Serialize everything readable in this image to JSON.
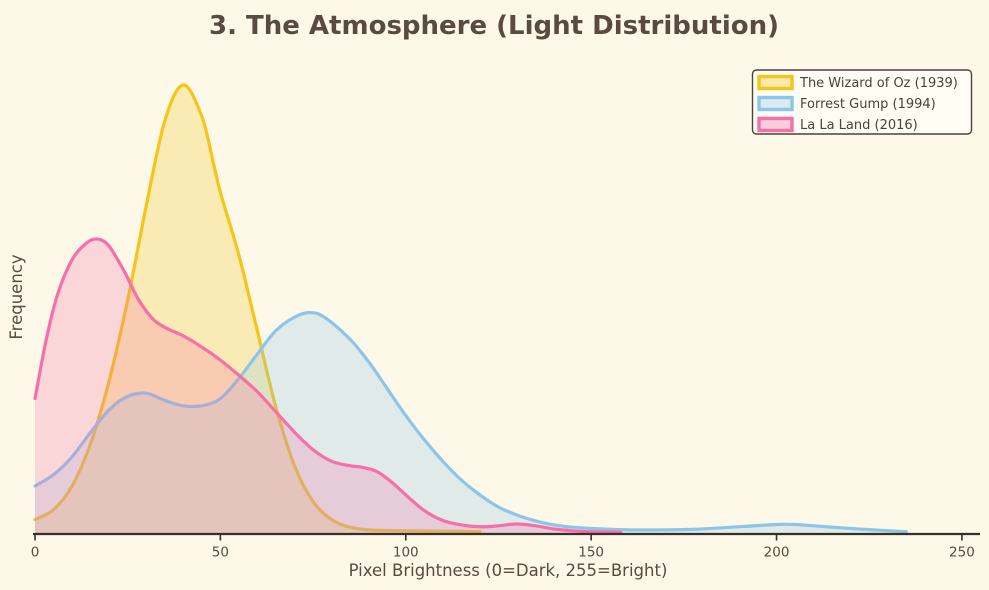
{
  "canvas": {
    "background": "#FDF8E8",
    "text_color": "#5A4A42",
    "axis_color": "#362E29",
    "legend_bg": "#FFFDF3",
    "legend_border": "#4A423C"
  },
  "chart_data": {
    "type": "area",
    "subtype": "kde-density",
    "title": "3. The Atmosphere (Light Distribution)",
    "xlabel": "Pixel Brightness (0=Dark, 255=Bright)",
    "ylabel": "Frequency",
    "xlim": [
      0,
      253
    ],
    "ylim": [
      0,
      1.05
    ],
    "xticks": [
      0,
      50,
      100,
      150,
      200,
      250
    ],
    "grid": false,
    "legend_position": "upper right",
    "series": [
      {
        "name": "The Wizard of Oz (1939)",
        "color": "#F5C518",
        "fill_alpha": 0.25,
        "peak_x": 40,
        "points": [
          [
            0,
            0.03
          ],
          [
            5,
            0.052
          ],
          [
            10,
            0.105
          ],
          [
            15,
            0.2
          ],
          [
            20,
            0.34
          ],
          [
            25,
            0.52
          ],
          [
            30,
            0.73
          ],
          [
            35,
            0.92
          ],
          [
            40,
            1.0
          ],
          [
            45,
            0.93
          ],
          [
            48,
            0.83
          ],
          [
            50,
            0.76
          ],
          [
            55,
            0.62
          ],
          [
            60,
            0.45
          ],
          [
            65,
            0.28
          ],
          [
            70,
            0.15
          ],
          [
            75,
            0.07
          ],
          [
            80,
            0.03
          ],
          [
            85,
            0.013
          ],
          [
            90,
            0.007
          ],
          [
            100,
            0.005
          ],
          [
            110,
            0.004
          ],
          [
            120,
            0.003
          ]
        ]
      },
      {
        "name": "Forrest Gump (1994)",
        "color": "#8CC5EA",
        "fill_alpha": 0.25,
        "peak_x": 74,
        "points": [
          [
            0,
            0.105
          ],
          [
            5,
            0.13
          ],
          [
            10,
            0.17
          ],
          [
            15,
            0.225
          ],
          [
            20,
            0.275
          ],
          [
            25,
            0.305
          ],
          [
            30,
            0.312
          ],
          [
            35,
            0.296
          ],
          [
            40,
            0.284
          ],
          [
            45,
            0.284
          ],
          [
            50,
            0.3
          ],
          [
            55,
            0.345
          ],
          [
            60,
            0.4
          ],
          [
            65,
            0.452
          ],
          [
            70,
            0.482
          ],
          [
            74,
            0.492
          ],
          [
            78,
            0.482
          ],
          [
            85,
            0.432
          ],
          [
            90,
            0.382
          ],
          [
            95,
            0.322
          ],
          [
            100,
            0.262
          ],
          [
            105,
            0.208
          ],
          [
            110,
            0.16
          ],
          [
            115,
            0.118
          ],
          [
            120,
            0.085
          ],
          [
            125,
            0.058
          ],
          [
            130,
            0.04
          ],
          [
            135,
            0.027
          ],
          [
            140,
            0.018
          ],
          [
            145,
            0.013
          ],
          [
            150,
            0.01
          ],
          [
            160,
            0.007
          ],
          [
            170,
            0.007
          ],
          [
            180,
            0.009
          ],
          [
            190,
            0.014
          ],
          [
            200,
            0.019
          ],
          [
            205,
            0.019
          ],
          [
            210,
            0.016
          ],
          [
            220,
            0.01
          ],
          [
            228,
            0.006
          ],
          [
            235,
            0.003
          ]
        ]
      },
      {
        "name": "La La Land (2016)",
        "color": "#F76FA8",
        "fill_alpha": 0.25,
        "peak_x": 17,
        "points": [
          [
            0,
            0.3
          ],
          [
            3,
            0.43
          ],
          [
            6,
            0.53
          ],
          [
            10,
            0.61
          ],
          [
            14,
            0.648
          ],
          [
            17,
            0.656
          ],
          [
            20,
            0.64
          ],
          [
            24,
            0.585
          ],
          [
            28,
            0.52
          ],
          [
            32,
            0.476
          ],
          [
            36,
            0.455
          ],
          [
            40,
            0.44
          ],
          [
            45,
            0.415
          ],
          [
            50,
            0.386
          ],
          [
            55,
            0.352
          ],
          [
            60,
            0.315
          ],
          [
            65,
            0.27
          ],
          [
            70,
            0.225
          ],
          [
            75,
            0.186
          ],
          [
            80,
            0.16
          ],
          [
            85,
            0.15
          ],
          [
            88,
            0.147
          ],
          [
            92,
            0.138
          ],
          [
            96,
            0.115
          ],
          [
            100,
            0.085
          ],
          [
            105,
            0.05
          ],
          [
            110,
            0.028
          ],
          [
            115,
            0.018
          ],
          [
            120,
            0.014
          ],
          [
            125,
            0.016
          ],
          [
            130,
            0.02
          ],
          [
            135,
            0.016
          ],
          [
            140,
            0.009
          ],
          [
            145,
            0.005
          ],
          [
            150,
            0.003
          ],
          [
            158,
            0.002
          ]
        ]
      }
    ]
  }
}
